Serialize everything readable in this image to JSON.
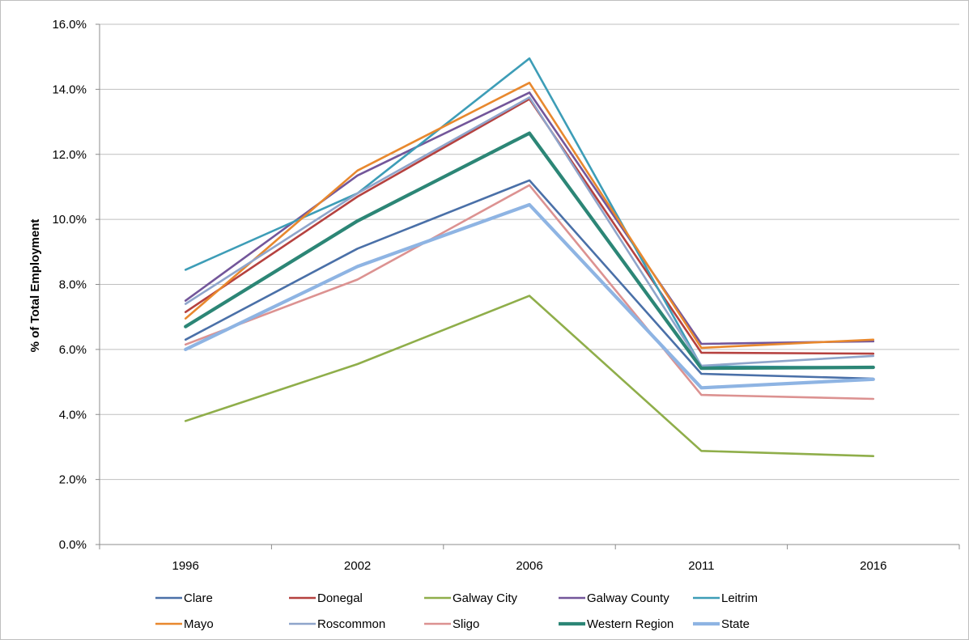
{
  "chart_data": {
    "type": "line",
    "title": "",
    "xlabel": "",
    "ylabel": "% of Total Employment",
    "categories": [
      "1996",
      "2002",
      "2006",
      "2011",
      "2016"
    ],
    "ylim": [
      0,
      16
    ],
    "yticks": [
      "0.0%",
      "2.0%",
      "4.0%",
      "6.0%",
      "8.0%",
      "10.0%",
      "12.0%",
      "14.0%",
      "16.0%"
    ],
    "grid": true,
    "legend_position": "bottom",
    "series": [
      {
        "name": "Clare",
        "color": "#4a70a8",
        "values": [
          6.3,
          9.1,
          11.2,
          5.25,
          5.1
        ]
      },
      {
        "name": "Donegal",
        "color": "#b5413f",
        "values": [
          7.15,
          10.7,
          13.7,
          5.9,
          5.87
        ]
      },
      {
        "name": "Galway City",
        "color": "#8fae4a",
        "values": [
          3.8,
          5.55,
          7.65,
          2.88,
          2.72
        ]
      },
      {
        "name": "Galway County",
        "color": "#73569a",
        "values": [
          7.5,
          11.35,
          13.9,
          6.17,
          6.25
        ]
      },
      {
        "name": "Leitrim",
        "color": "#3d9db7",
        "values": [
          8.45,
          10.8,
          14.95,
          5.48,
          5.45
        ]
      },
      {
        "name": "Mayo",
        "color": "#e8882e",
        "values": [
          6.95,
          11.5,
          14.2,
          6.05,
          6.3
        ]
      },
      {
        "name": "Roscommon",
        "color": "#8fa5cb",
        "values": [
          7.4,
          10.8,
          13.75,
          5.5,
          5.8
        ]
      },
      {
        "name": "Sligo",
        "color": "#dc9291",
        "values": [
          6.15,
          8.15,
          11.05,
          4.6,
          4.48
        ]
      },
      {
        "name": "Western Region",
        "color": "#2c8676",
        "values": [
          6.7,
          9.95,
          12.65,
          5.42,
          5.45
        ]
      },
      {
        "name": "State",
        "color": "#8eb4e3",
        "values": [
          6.0,
          8.55,
          10.45,
          4.82,
          5.08
        ]
      }
    ]
  }
}
